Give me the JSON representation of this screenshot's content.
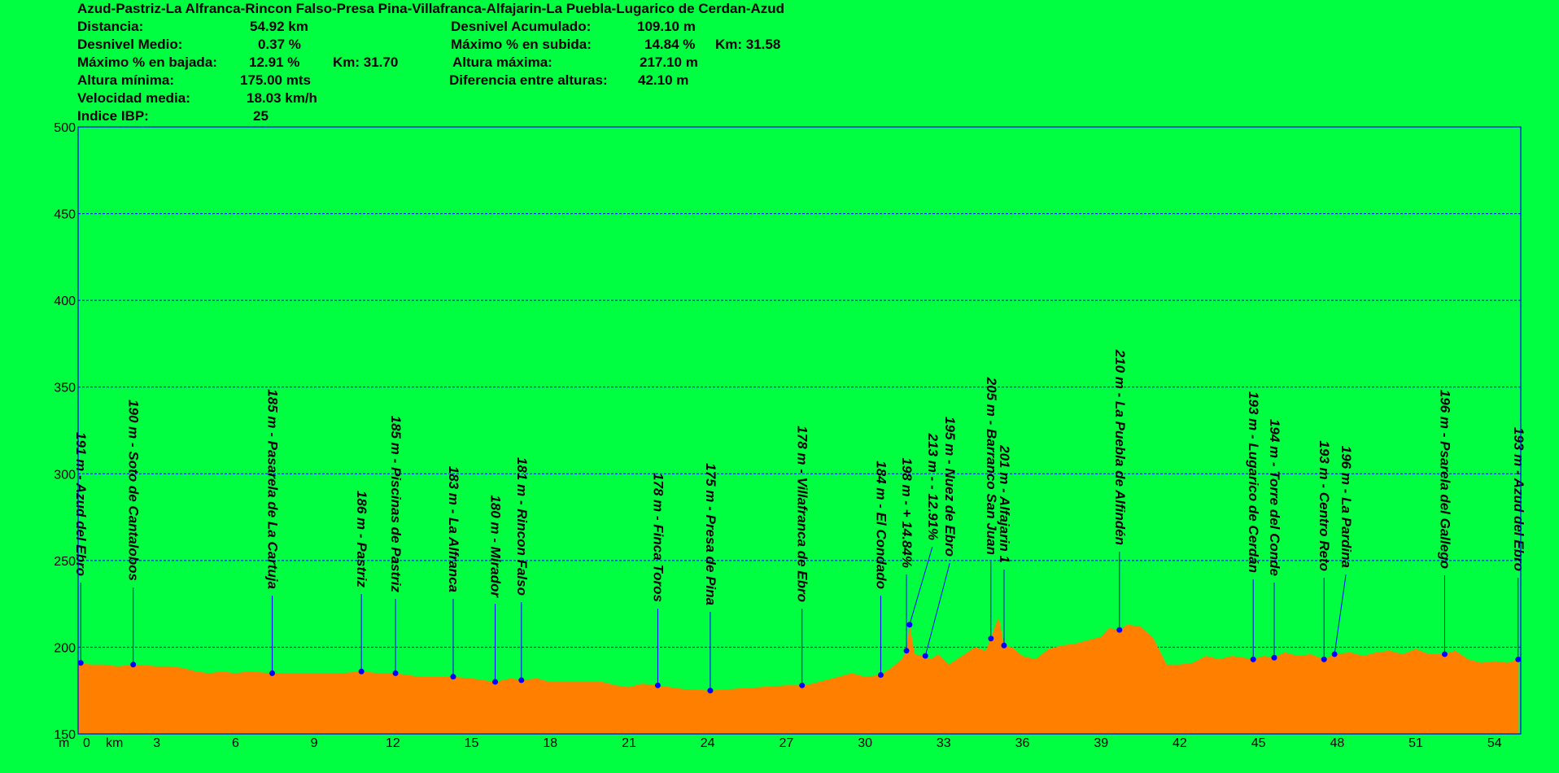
{
  "stats": {
    "title": "Azud-Pastriz-La Alfranca-Rincon Falso-Presa Pina-Villafranca-Alfajarin-La Puebla-Lugarico de Cerdan-Azud",
    "distancia_label": "Distancia:",
    "distancia_value": "54.92 km",
    "desnivel_medio_label": "Desnivel Medio:",
    "desnivel_medio_value": "0.37 %",
    "max_bajada_label": "Máximo % en bajada:",
    "max_bajada_value": "12.91 %",
    "max_bajada_km": "Km: 31.70",
    "altura_minima_label": "Altura mínima:",
    "altura_minima_value": "175.00 mts",
    "velocidad_label": "Velocidad media:",
    "velocidad_value": "18.03 km/h",
    "ibp_label": "Indice IBP:",
    "ibp_value": "25",
    "desnivel_acum_label": "Desnivel Acumulado:",
    "desnivel_acum_value": "109.10 m",
    "max_subida_label": "Máximo % en subida:",
    "max_subida_value": "14.84 %",
    "max_subida_km": "Km: 31.58",
    "altura_maxima_label": "Altura máxima:",
    "altura_maxima_value": "217.10 m",
    "diferencia_label": "Diferencia entre alturas:",
    "diferencia_value": "42.10 m"
  },
  "chart_data": {
    "type": "area",
    "x_unit_label": "km",
    "y_unit_label": "m",
    "xlim": [
      0,
      55
    ],
    "ylim": [
      150,
      500
    ],
    "x_ticks": [
      0,
      3,
      6,
      9,
      12,
      15,
      18,
      21,
      24,
      27,
      30,
      33,
      36,
      39,
      42,
      45,
      48,
      51,
      54
    ],
    "y_ticks": [
      150,
      200,
      250,
      300,
      350,
      400,
      450,
      500
    ],
    "grid": true,
    "colors": {
      "background": "#00FF40",
      "fill": "#FF8000",
      "axis": "#0000FF",
      "marker": "#0000FF"
    },
    "profile": [
      [
        0,
        191
      ],
      [
        0.5,
        190
      ],
      [
        1,
        190
      ],
      [
        1.5,
        189
      ],
      [
        2.2,
        190
      ],
      [
        3,
        189
      ],
      [
        3.5,
        189
      ],
      [
        4,
        188
      ],
      [
        4.5,
        186
      ],
      [
        5,
        185
      ],
      [
        5.5,
        186
      ],
      [
        6,
        185
      ],
      [
        6.5,
        186
      ],
      [
        7.4,
        185
      ],
      [
        8,
        185
      ],
      [
        9,
        185
      ],
      [
        10,
        185
      ],
      [
        10.8,
        186
      ],
      [
        11.5,
        185
      ],
      [
        12.1,
        185
      ],
      [
        13,
        183
      ],
      [
        14.3,
        183
      ],
      [
        15,
        182
      ],
      [
        15.9,
        180
      ],
      [
        16.5,
        182
      ],
      [
        16.9,
        181
      ],
      [
        17.5,
        182
      ],
      [
        18,
        180
      ],
      [
        19,
        180
      ],
      [
        20,
        180
      ],
      [
        20.5,
        178
      ],
      [
        21,
        177
      ],
      [
        21.5,
        179
      ],
      [
        22.1,
        178
      ],
      [
        23,
        176
      ],
      [
        24.1,
        175
      ],
      [
        25,
        176
      ],
      [
        26,
        177
      ],
      [
        27,
        178
      ],
      [
        27.6,
        178
      ],
      [
        28,
        179
      ],
      [
        28.5,
        181
      ],
      [
        29,
        183
      ],
      [
        29.5,
        185
      ],
      [
        30,
        183
      ],
      [
        30.6,
        184
      ],
      [
        31,
        188
      ],
      [
        31.4,
        193
      ],
      [
        31.58,
        198
      ],
      [
        31.7,
        213
      ],
      [
        31.9,
        196
      ],
      [
        32.2,
        195
      ],
      [
        32.5,
        193
      ],
      [
        32.8,
        196
      ],
      [
        33.2,
        190
      ],
      [
        33.7,
        195
      ],
      [
        34.2,
        200
      ],
      [
        34.6,
        198
      ],
      [
        34.8,
        205
      ],
      [
        35.0,
        214
      ],
      [
        35.1,
        217.1
      ],
      [
        35.3,
        201
      ],
      [
        35.6,
        200
      ],
      [
        36,
        195
      ],
      [
        36.5,
        193
      ],
      [
        37,
        199
      ],
      [
        37.5,
        201
      ],
      [
        38,
        202
      ],
      [
        38.5,
        204
      ],
      [
        39,
        206
      ],
      [
        39.3,
        211
      ],
      [
        39.7,
        210
      ],
      [
        40,
        213
      ],
      [
        40.5,
        212
      ],
      [
        41,
        205
      ],
      [
        41.3,
        196
      ],
      [
        41.5,
        190
      ],
      [
        42,
        190
      ],
      [
        42.5,
        191
      ],
      [
        43,
        195
      ],
      [
        43.5,
        193
      ],
      [
        44,
        195
      ],
      [
        44.8,
        193
      ],
      [
        45.2,
        195
      ],
      [
        45.6,
        194
      ],
      [
        46,
        197
      ],
      [
        46.5,
        195
      ],
      [
        47,
        196
      ],
      [
        47.5,
        193
      ],
      [
        47.9,
        196
      ],
      [
        48.5,
        197
      ],
      [
        49,
        195
      ],
      [
        49.5,
        197
      ],
      [
        50,
        198
      ],
      [
        50.5,
        196
      ],
      [
        51,
        199
      ],
      [
        51.5,
        196
      ],
      [
        52.1,
        196
      ],
      [
        52.5,
        198
      ],
      [
        53,
        193
      ],
      [
        53.5,
        191
      ],
      [
        54,
        192
      ],
      [
        54.5,
        191
      ],
      [
        54.92,
        193
      ]
    ],
    "waypoints": [
      {
        "km": 0.1,
        "alt": 191,
        "label": "191 m - Azud del Ebro"
      },
      {
        "km": 2.1,
        "alt": 190,
        "label": "190 m - Soto de Cantalobos"
      },
      {
        "km": 7.4,
        "alt": 185,
        "label": "185 m - Pasarela de La Cartuja"
      },
      {
        "km": 10.8,
        "alt": 186,
        "label": "186 m - Pastriz"
      },
      {
        "km": 12.1,
        "alt": 185,
        "label": "185 m - Piscinas de Pastriz"
      },
      {
        "km": 14.3,
        "alt": 183,
        "label": "183 m - La Alfranca"
      },
      {
        "km": 15.9,
        "alt": 180,
        "label": "180 m - Mirador"
      },
      {
        "km": 16.9,
        "alt": 181,
        "label": "181 m - Rincon Falso"
      },
      {
        "km": 22.1,
        "alt": 178,
        "label": "178 m - Finca Toros"
      },
      {
        "km": 24.1,
        "alt": 175,
        "label": "175 m - Presa de Pina"
      },
      {
        "km": 27.6,
        "alt": 178,
        "label": "178 m - Villafranca de Ebro"
      },
      {
        "km": 30.6,
        "alt": 184,
        "label": "184 m - El Condado"
      },
      {
        "km": 31.58,
        "alt": 198,
        "label": "198 m - + 14.84%"
      },
      {
        "km": 31.7,
        "alt": 213,
        "label": "213 m - - 12.91%"
      },
      {
        "km": 32.3,
        "alt": 195,
        "label": "195 m - Nuez de Ebro"
      },
      {
        "km": 34.8,
        "alt": 205,
        "label": "205 m - Barranco San Juan"
      },
      {
        "km": 35.3,
        "alt": 201,
        "label": "201 m - Alfajarin 1"
      },
      {
        "km": 39.7,
        "alt": 210,
        "label": "210 m - La Puebla de Alfindén"
      },
      {
        "km": 44.8,
        "alt": 193,
        "label": "193 m - Lugarico de Cerdán"
      },
      {
        "km": 45.6,
        "alt": 194,
        "label": "194 m - Torre del Conde"
      },
      {
        "km": 47.5,
        "alt": 193,
        "label": "193 m - Centro Reto"
      },
      {
        "km": 47.9,
        "alt": 196,
        "label": "196 m - La Pardina"
      },
      {
        "km": 52.1,
        "alt": 196,
        "label": "196 m - Psarela del Gallego"
      },
      {
        "km": 54.9,
        "alt": 193,
        "label": "193 m - Azud del Ebro"
      }
    ]
  }
}
